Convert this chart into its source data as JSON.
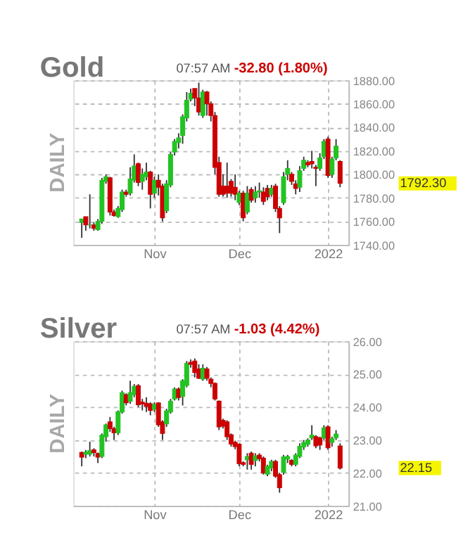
{
  "chart_data": [
    {
      "type": "candlestick",
      "title": "Gold",
      "ylabel": "DAILY",
      "annotations": [
        "07:57 AM",
        "-32.80 (1.80%)",
        "1792.30"
      ],
      "categories": [
        null,
        null,
        null,
        null,
        null,
        null,
        null,
        null,
        null,
        null,
        null,
        null,
        null,
        null,
        null,
        null,
        null,
        null,
        "Nov",
        null,
        null,
        null,
        null,
        null,
        null,
        null,
        null,
        null,
        null,
        null,
        null,
        null,
        null,
        null,
        null,
        null,
        null,
        null,
        null,
        "Dec",
        null,
        null,
        null,
        null,
        null,
        null,
        null,
        null,
        null,
        null,
        null,
        null,
        null,
        null,
        null,
        null,
        null,
        null,
        null,
        null,
        null,
        "2022",
        null,
        null,
        null
      ],
      "colors": [
        "#22c322",
        "#cc0000",
        "#22c322",
        "#cc0000",
        "#22c322",
        "#22c322",
        "#22c322",
        "#cc0000",
        "#cc0000",
        "#22c322",
        "#22c322",
        "#cc0000",
        "#22c322",
        "#22c322",
        "#cc0000",
        "#22c322",
        "#22c322",
        "#cc0000",
        "#22c322",
        "#cc0000",
        "#cc0000",
        "#22c322",
        "#22c322",
        "#22c322",
        "#22c322",
        "#22c322",
        "#22c322",
        "#22c322",
        "#cc0000",
        "#cc0000",
        "#22c322",
        "#cc0000",
        "#cc0000",
        "#cc0000",
        "#cc0000",
        "#cc0000",
        "#cc0000",
        "#cc0000",
        "#cc0000",
        "#22c322",
        "#cc0000",
        "#22c322",
        "#cc0000",
        "#22c322",
        "#22c322",
        "#cc0000",
        "#cc0000",
        "#22c322",
        "#cc0000",
        "#cc0000",
        "#22c322",
        "#22c322",
        "#cc0000",
        "#cc0000",
        "#22c322",
        "#22c322",
        "#cc0000",
        "#cc0000",
        "#cc0000",
        "#22c322",
        "#22c322",
        "#cc0000",
        "#22c322",
        "#22c322",
        "#cc0000"
      ],
      "ylim": [
        1740,
        1880
      ],
      "yticks": [
        {
          "value": 1740,
          "label": "1740.00"
        },
        {
          "value": 1760,
          "label": "1760.00"
        },
        {
          "value": 1780,
          "label": "1780.00"
        },
        {
          "value": 1800,
          "label": "1800.00"
        },
        {
          "value": 1820,
          "label": "1820.00"
        },
        {
          "value": 1840,
          "label": "1840.00"
        },
        {
          "value": 1860,
          "label": "1860.00"
        },
        {
          "value": 1880,
          "label": "1880.00"
        }
      ],
      "grid": true,
      "ohlc": [
        [
          1759,
          1762,
          1746,
          1762
        ],
        [
          1764,
          1764,
          1752,
          1757
        ],
        [
          1757,
          1783,
          1754,
          1757
        ],
        [
          1757,
          1759,
          1752,
          1754
        ],
        [
          1753,
          1762,
          1752,
          1760
        ],
        [
          1760,
          1797,
          1758,
          1795
        ],
        [
          1794,
          1800,
          1792,
          1798
        ],
        [
          1797,
          1798,
          1765,
          1768
        ],
        [
          1768,
          1770,
          1764,
          1765
        ],
        [
          1764,
          1773,
          1763,
          1771
        ],
        [
          1770,
          1787,
          1768,
          1785
        ],
        [
          1785,
          1787,
          1781,
          1783
        ],
        [
          1784,
          1806,
          1782,
          1796
        ],
        [
          1795,
          1817,
          1793,
          1807
        ],
        [
          1809,
          1810,
          1790,
          1793
        ],
        [
          1794,
          1805,
          1787,
          1800
        ],
        [
          1798,
          1810,
          1795,
          1802
        ],
        [
          1802,
          1803,
          1771,
          1783
        ],
        [
          1784,
          1798,
          1780,
          1795
        ],
        [
          1795,
          1800,
          1782,
          1789
        ],
        [
          1790,
          1792,
          1760,
          1763
        ],
        [
          1769,
          1795,
          1767,
          1792
        ],
        [
          1791,
          1819,
          1789,
          1817
        ],
        [
          1819,
          1830,
          1816,
          1828
        ],
        [
          1827,
          1835,
          1822,
          1831
        ],
        [
          1833,
          1851,
          1826,
          1849
        ],
        [
          1848,
          1870,
          1845,
          1863
        ],
        [
          1864,
          1873,
          1862,
          1869
        ],
        [
          1873,
          1873,
          1858,
          1865
        ],
        [
          1865,
          1878,
          1850,
          1853
        ],
        [
          1850,
          1872,
          1848,
          1870
        ],
        [
          1870,
          1871,
          1850,
          1860
        ],
        [
          1860,
          1862,
          1845,
          1850
        ],
        [
          1850,
          1853,
          1800,
          1806
        ],
        [
          1810,
          1815,
          1781,
          1783
        ],
        [
          1790,
          1800,
          1781,
          1783
        ],
        [
          1790,
          1810,
          1780,
          1784
        ],
        [
          1794,
          1796,
          1781,
          1784
        ],
        [
          1789,
          1800,
          1778,
          1783
        ],
        [
          1776,
          1786,
          1774,
          1784
        ],
        [
          1784,
          1786,
          1760,
          1763
        ],
        [
          1768,
          1790,
          1766,
          1784
        ],
        [
          1787,
          1789,
          1776,
          1778
        ],
        [
          1780,
          1790,
          1776,
          1785
        ],
        [
          1785,
          1793,
          1780,
          1786
        ],
        [
          1785,
          1789,
          1774,
          1777
        ],
        [
          1788,
          1791,
          1778,
          1781
        ],
        [
          1783,
          1791,
          1781,
          1788
        ],
        [
          1790,
          1792,
          1768,
          1771
        ],
        [
          1771,
          1773,
          1750,
          1763
        ],
        [
          1776,
          1802,
          1774,
          1798
        ],
        [
          1800,
          1812,
          1795,
          1805
        ],
        [
          1800,
          1802,
          1791,
          1794
        ],
        [
          1792,
          1795,
          1783,
          1788
        ],
        [
          1789,
          1807,
          1785,
          1803
        ],
        [
          1805,
          1815,
          1803,
          1812
        ],
        [
          1810,
          1812,
          1806,
          1808
        ],
        [
          1811,
          1820,
          1805,
          1809
        ],
        [
          1806,
          1808,
          1790,
          1805
        ],
        [
          1805,
          1818,
          1803,
          1814
        ],
        [
          1815,
          1830,
          1813,
          1828
        ],
        [
          1830,
          1832,
          1797,
          1799
        ],
        [
          1800,
          1815,
          1797,
          1813
        ],
        [
          1814,
          1830,
          1812,
          1824
        ],
        [
          1811,
          1812,
          1789,
          1792.3
        ]
      ]
    },
    {
      "type": "candlestick",
      "title": "Silver",
      "ylabel": "DAILY",
      "annotations": [
        "07:57 AM",
        "-1.03 (4.42%)",
        "22.15"
      ],
      "categories": [
        null,
        null,
        null,
        null,
        null,
        null,
        null,
        null,
        null,
        null,
        null,
        null,
        null,
        null,
        null,
        null,
        null,
        null,
        "Nov",
        null,
        null,
        null,
        null,
        null,
        null,
        null,
        null,
        null,
        null,
        null,
        null,
        null,
        null,
        null,
        null,
        null,
        null,
        null,
        null,
        "Dec",
        null,
        null,
        null,
        null,
        null,
        null,
        null,
        null,
        null,
        null,
        null,
        null,
        null,
        null,
        null,
        null,
        null,
        null,
        null,
        null,
        null,
        "2022",
        null,
        null,
        null
      ],
      "colors": [
        "#cc0000",
        "#22c322",
        "#22c322",
        "#cc0000",
        "#cc0000",
        "#22c322",
        "#22c322",
        "#cc0000",
        "#cc0000",
        "#22c322",
        "#22c322",
        "#cc0000",
        "#22c322",
        "#22c322",
        "#cc0000",
        "#cc0000",
        "#cc0000",
        "#cc0000",
        "#22c322",
        "#cc0000",
        "#cc0000",
        "#22c322",
        "#22c322",
        "#22c322",
        "#cc0000",
        "#22c322",
        "#22c322",
        "#cc0000",
        "#cc0000",
        "#cc0000",
        "#22c322",
        "#cc0000",
        "#cc0000",
        "#cc0000",
        "#cc0000",
        "#cc0000",
        "#cc0000",
        "#cc0000",
        "#cc0000",
        "#cc0000",
        "#cc0000",
        "#22c322",
        "#cc0000",
        "#22c322",
        "#cc0000",
        "#cc0000",
        "#22c322",
        "#22c322",
        "#cc0000",
        "#cc0000",
        "#22c322",
        "#22c322",
        "#cc0000",
        "#22c322",
        "#22c322",
        "#22c322",
        "#22c322",
        "#22c322",
        "#cc0000",
        "#cc0000",
        "#22c322",
        "#cc0000",
        "#22c322",
        "#22c322",
        "#cc0000"
      ],
      "ylim": [
        21,
        26
      ],
      "yticks": [
        {
          "value": 21,
          "label": "21.00"
        },
        {
          "value": 22,
          "label": "22.00"
        },
        {
          "value": 23,
          "label": "23.00"
        },
        {
          "value": 24,
          "label": "24.00"
        },
        {
          "value": 25,
          "label": "25.00"
        },
        {
          "value": 26,
          "label": "26.00"
        }
      ],
      "grid": true,
      "ohlc": [
        [
          22.62,
          22.65,
          22.2,
          22.48
        ],
        [
          22.57,
          22.7,
          22.45,
          22.63
        ],
        [
          22.57,
          22.95,
          22.5,
          22.68
        ],
        [
          22.7,
          22.75,
          22.5,
          22.62
        ],
        [
          22.59,
          22.62,
          22.3,
          22.48
        ],
        [
          22.5,
          23.2,
          22.45,
          23.15
        ],
        [
          23.1,
          23.5,
          22.95,
          23.46
        ],
        [
          23.55,
          23.7,
          23.25,
          23.35
        ],
        [
          23.35,
          23.4,
          23.0,
          23.22
        ],
        [
          23.22,
          23.9,
          23.15,
          23.86
        ],
        [
          23.85,
          24.5,
          23.8,
          24.44
        ],
        [
          24.38,
          24.42,
          24.05,
          24.13
        ],
        [
          24.18,
          24.8,
          24.1,
          24.44
        ],
        [
          24.38,
          24.7,
          24.3,
          24.63
        ],
        [
          24.65,
          24.7,
          24.0,
          24.07
        ],
        [
          24.15,
          24.25,
          23.9,
          24.1
        ],
        [
          24.12,
          24.3,
          23.85,
          24.02
        ],
        [
          24.1,
          24.15,
          23.75,
          23.9
        ],
        [
          23.93,
          24.15,
          23.85,
          24.08
        ],
        [
          24.13,
          24.15,
          23.4,
          23.46
        ],
        [
          23.55,
          23.6,
          23.0,
          23.2
        ],
        [
          23.49,
          23.95,
          23.4,
          23.88
        ],
        [
          23.85,
          24.25,
          23.8,
          24.18
        ],
        [
          24.25,
          24.6,
          24.2,
          24.55
        ],
        [
          24.55,
          24.6,
          24.2,
          24.29
        ],
        [
          24.32,
          24.85,
          24.05,
          24.8
        ],
        [
          24.66,
          25.4,
          24.6,
          25.33
        ],
        [
          25.36,
          25.45,
          25.2,
          25.3
        ],
        [
          25.4,
          25.48,
          24.9,
          25.05
        ],
        [
          25.16,
          25.3,
          24.85,
          24.88
        ],
        [
          24.85,
          25.3,
          24.8,
          25.18
        ],
        [
          25.16,
          25.22,
          24.8,
          24.88
        ],
        [
          24.85,
          24.9,
          24.6,
          24.72
        ],
        [
          24.72,
          24.75,
          24.2,
          24.25
        ],
        [
          24.18,
          24.2,
          23.3,
          23.4
        ],
        [
          23.6,
          23.65,
          23.35,
          23.42
        ],
        [
          23.55,
          23.6,
          23.0,
          23.1
        ],
        [
          23.16,
          23.2,
          22.8,
          22.88
        ],
        [
          22.93,
          22.98,
          22.72,
          22.8
        ],
        [
          22.87,
          22.9,
          22.2,
          22.28
        ],
        [
          22.31,
          22.35,
          22.2,
          22.26
        ],
        [
          22.4,
          22.6,
          22.1,
          22.5
        ],
        [
          22.6,
          22.65,
          22.1,
          22.26
        ],
        [
          22.38,
          22.6,
          22.2,
          22.52
        ],
        [
          22.54,
          22.6,
          22.35,
          22.43
        ],
        [
          22.45,
          22.5,
          21.95,
          22.0
        ],
        [
          21.96,
          22.25,
          21.9,
          22.2
        ],
        [
          22.15,
          22.4,
          22.05,
          22.35
        ],
        [
          22.35,
          22.4,
          21.85,
          21.9
        ],
        [
          21.95,
          22.0,
          21.4,
          21.55
        ],
        [
          22.02,
          22.55,
          21.95,
          22.49
        ],
        [
          22.42,
          22.55,
          22.3,
          22.5
        ],
        [
          22.38,
          22.42,
          22.2,
          22.26
        ],
        [
          22.26,
          22.6,
          22.2,
          22.54
        ],
        [
          22.5,
          22.9,
          22.45,
          22.81
        ],
        [
          22.79,
          23.0,
          22.7,
          22.92
        ],
        [
          22.87,
          23.05,
          22.8,
          23.0
        ],
        [
          23.06,
          23.45,
          23.0,
          23.15
        ],
        [
          23.1,
          23.15,
          22.75,
          22.82
        ],
        [
          23.07,
          23.1,
          22.7,
          22.85
        ],
        [
          23.06,
          23.45,
          23.0,
          23.37
        ],
        [
          23.4,
          23.45,
          22.7,
          22.76
        ],
        [
          22.93,
          23.1,
          22.8,
          23.04
        ],
        [
          23.07,
          23.3,
          23.0,
          23.18
        ],
        [
          22.82,
          22.9,
          22.1,
          22.15
        ]
      ]
    }
  ]
}
